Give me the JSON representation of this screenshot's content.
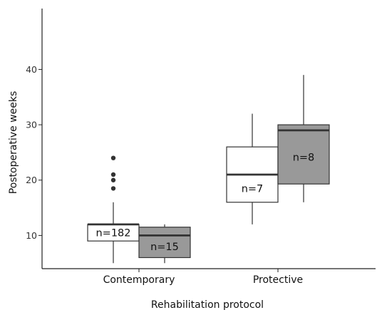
{
  "chart_data": {
    "type": "box",
    "xlabel": "Rehabilitation protocol",
    "ylabel": "Postoperative weeks",
    "categories": [
      "Contemporary",
      "Protective"
    ],
    "yticks": [
      10,
      20,
      30,
      40
    ],
    "ylim": [
      4,
      51
    ],
    "grid": false,
    "legend": "none",
    "colors": {
      "group_a": "#ffffff",
      "group_b": "#999999",
      "stroke": "#333333"
    },
    "boxes": [
      {
        "category": "Contemporary",
        "group": "a",
        "n_label": "n=182",
        "min": 5,
        "q1": 9,
        "median": 12,
        "q3": 12,
        "max": 16,
        "outliers": [
          18.5,
          20,
          21,
          24
        ]
      },
      {
        "category": "Contemporary",
        "group": "b",
        "n_label": "n=15",
        "min": 5,
        "q1": 6,
        "median": 10,
        "q3": 11.5,
        "max": 12,
        "outliers": []
      },
      {
        "category": "Protective",
        "group": "a",
        "n_label": "n=7",
        "min": 12,
        "q1": 16,
        "median": 21,
        "q3": 26,
        "max": 32,
        "outliers": []
      },
      {
        "category": "Protective",
        "group": "b",
        "n_label": "n=8",
        "min": 16,
        "q1": 19.3,
        "median": 29,
        "q3": 30,
        "max": 39,
        "outliers": []
      }
    ]
  }
}
